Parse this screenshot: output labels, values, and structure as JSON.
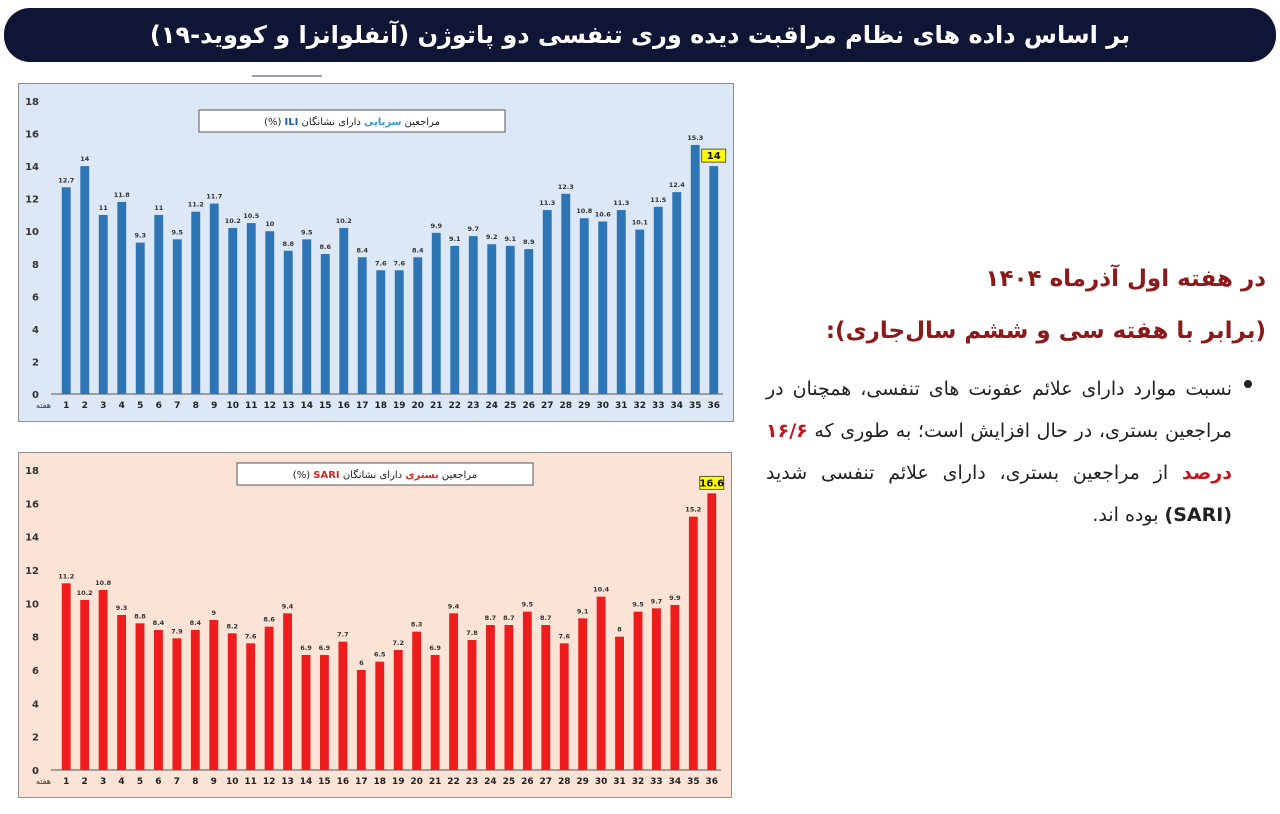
{
  "header": {
    "title": "بر اساس داده های نظام مراقبت دیده وری تنفسی دو پاتوژن (آنفلوانزا و کووید-۱۹)"
  },
  "text": {
    "heading1": "در هفته اول آذرماه ۱۴۰۴",
    "heading2": "(برابر با هفته سی و ششم سال‌جاری):",
    "bullet_part1": "نسبت موارد دارای علائم عفونت های تنفسی، همچنان در مراجعین بستری، در حال افزایش است؛ به طوری که",
    "bullet_highlight": "۱۶/۶ درصد",
    "bullet_part2": "از مراجعین بستری، دارای علائم تنفسی شدید",
    "bullet_bold": "(SARI)",
    "bullet_part3": "بوده اند."
  },
  "colors": {
    "header_bg": "#0f1535",
    "ili_bg": "#dce8f5",
    "ili_bar": "#2e75b6",
    "sari_bg": "#fbe3d6",
    "sari_bar": "#ee1c1c",
    "highlight_label": "#ffff00",
    "heading_text": "#8b1a1a"
  },
  "chart_data": [
    {
      "type": "bar",
      "title_parts": [
        "مراجعین ",
        "سرپایی",
        " دارای نشانگان ",
        "ILI",
        " (%)"
      ],
      "xlabel": "هفته",
      "ylabel": "",
      "ylim": [
        0,
        18
      ],
      "y_ticks": [
        0,
        2,
        4,
        6,
        8,
        10,
        12,
        14,
        16,
        18
      ],
      "categories": [
        "1",
        "2",
        "3",
        "4",
        "5",
        "6",
        "7",
        "8",
        "9",
        "10",
        "11",
        "12",
        "13",
        "14",
        "15",
        "16",
        "17",
        "18",
        "19",
        "20",
        "21",
        "22",
        "23",
        "24",
        "25",
        "26",
        "27",
        "28",
        "29",
        "30",
        "31",
        "32",
        "33",
        "34",
        "35",
        "36"
      ],
      "values": [
        12.7,
        14,
        11,
        11.8,
        9.3,
        11,
        9.5,
        11.2,
        11.7,
        10.2,
        10.5,
        10,
        8.8,
        9.5,
        8.6,
        10.2,
        8.4,
        7.6,
        7.6,
        8.4,
        9.9,
        9.1,
        9.7,
        9.2,
        9.1,
        8.9,
        11.3,
        12.3,
        10.8,
        10.6,
        11.3,
        10.1,
        11.5,
        12.4,
        15.3,
        14
      ],
      "labels": [
        "12.7",
        "14",
        "11",
        "11.8",
        "9.3",
        "11",
        "9.5",
        "11.2",
        "11.7",
        "10.2",
        "10.5",
        "10",
        "8.8",
        "9.5",
        "8.6",
        "10.2",
        "8.4",
        "7.6",
        "7.6",
        "8.4",
        "9.9",
        "9.1",
        "9.7",
        "9.2",
        "9.1",
        "8.9",
        "11.3",
        "12.3",
        "10.8",
        "10.6",
        "11.3",
        "10.1",
        "11.5",
        "12.4",
        "15.3",
        "14"
      ],
      "highlight_last": true,
      "grid": false
    },
    {
      "type": "bar",
      "title_parts": [
        "مراجعین ",
        "بستری",
        " دارای نشانگان ",
        "SARI",
        " (%)"
      ],
      "xlabel": "هفته",
      "ylabel": "",
      "ylim": [
        0,
        18
      ],
      "y_ticks": [
        0,
        2,
        4,
        6,
        8,
        10,
        12,
        14,
        16,
        18
      ],
      "categories": [
        "1",
        "2",
        "3",
        "4",
        "5",
        "6",
        "7",
        "8",
        "9",
        "10",
        "11",
        "12",
        "13",
        "14",
        "15",
        "16",
        "17",
        "18",
        "19",
        "20",
        "21",
        "22",
        "23",
        "24",
        "25",
        "26",
        "27",
        "28",
        "29",
        "30",
        "31",
        "32",
        "33",
        "34",
        "35",
        "36"
      ],
      "values": [
        11.2,
        10.2,
        10.8,
        9.3,
        8.8,
        8.4,
        7.9,
        8.4,
        9,
        8.2,
        7.6,
        8.6,
        9.4,
        6.9,
        6.9,
        7.7,
        6,
        6.5,
        7.2,
        8.3,
        6.9,
        9.4,
        7.8,
        8.7,
        8.7,
        9.5,
        8.7,
        7.6,
        9.1,
        10.4,
        8,
        9.5,
        9.7,
        9.9,
        15.2,
        16.6
      ],
      "labels": [
        "11.2",
        "10.2",
        "10.8",
        "9.3",
        "8.8",
        "8.4",
        "7.9",
        "8.4",
        "9",
        "8.2",
        "7.6",
        "8.6",
        "9.4",
        "6.9",
        "6.9",
        "7.7",
        "6",
        "6.5",
        "7.2",
        "8.3",
        "6.9",
        "9.4",
        "7.8",
        "8.7",
        "8.7",
        "9.5",
        "8.7",
        "7.6",
        "9.1",
        "10.4",
        "8",
        "9.5",
        "9.7",
        "9.9",
        "15.2",
        "16.6"
      ],
      "highlight_last": true,
      "grid": false
    }
  ]
}
